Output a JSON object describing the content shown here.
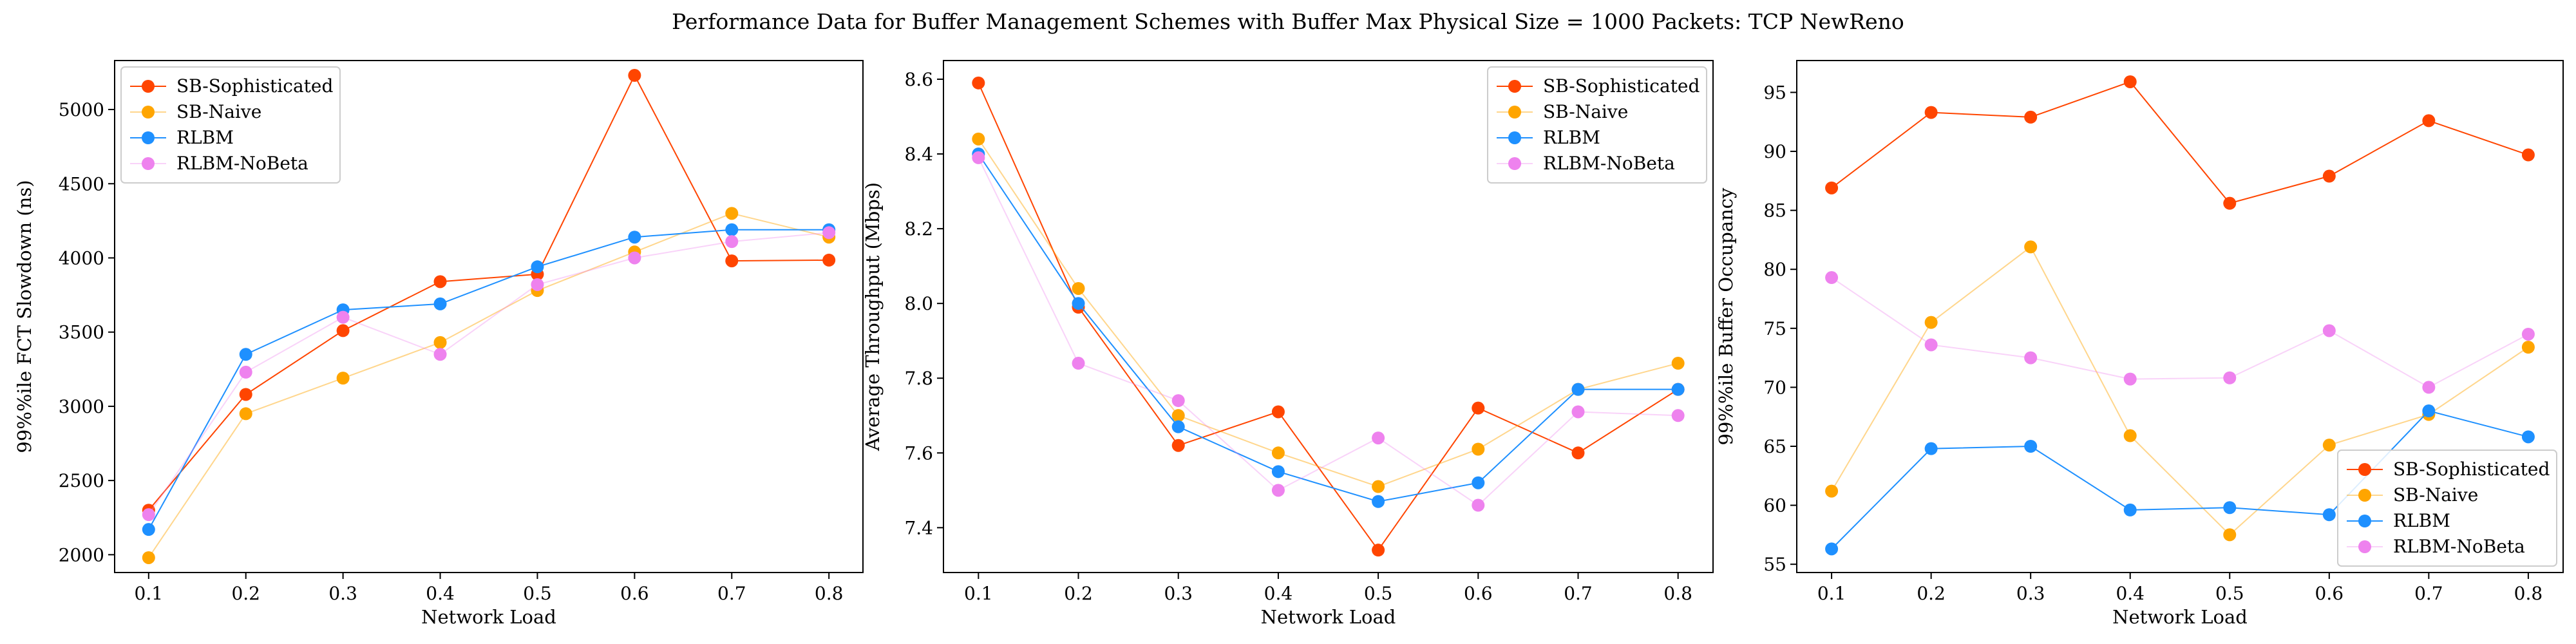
{
  "title": "Performance Data for Buffer Management Schemes with Buffer Max Physical Size = 1000 Packets: TCP NewReno",
  "colors": {
    "SB-Sophisticated": "#ff4500",
    "SB-Naive": "#ffa500",
    "RLBM": "#1e90ff",
    "RLBM-NoBeta": "#ee82ee"
  },
  "chart_data": [
    {
      "type": "line",
      "xlabel": "Network Load",
      "ylabel": "99%%ile FCT Slowdown (ns)",
      "x": [
        0.1,
        0.2,
        0.3,
        0.4,
        0.5,
        0.6,
        0.7,
        0.8
      ],
      "xticks": [
        "0.1",
        "0.2",
        "0.3",
        "0.4",
        "0.5",
        "0.6",
        "0.7",
        "0.8"
      ],
      "xlim": [
        0.065,
        0.835
      ],
      "ylim": [
        1880,
        5330
      ],
      "yticks": [
        2000,
        2500,
        3000,
        3500,
        4000,
        4500,
        5000
      ],
      "legend": "upper left",
      "series": [
        {
          "name": "SB-Sophisticated",
          "values": [
            2300,
            3080,
            3510,
            3840,
            3890,
            5230,
            3980,
            3985
          ]
        },
        {
          "name": "SB-Naive",
          "values": [
            1980,
            2950,
            3190,
            3430,
            3780,
            4040,
            4300,
            4140
          ]
        },
        {
          "name": "RLBM",
          "values": [
            2170,
            3350,
            3650,
            3690,
            3940,
            4140,
            4190,
            4190
          ]
        },
        {
          "name": "RLBM-NoBeta",
          "values": [
            2270,
            3230,
            3600,
            3350,
            3820,
            4000,
            4110,
            4170
          ]
        }
      ]
    },
    {
      "type": "line",
      "xlabel": "Network Load",
      "ylabel": "Average Throughput (Mbps)",
      "x": [
        0.1,
        0.2,
        0.3,
        0.4,
        0.5,
        0.6,
        0.7,
        0.8
      ],
      "xticks": [
        "0.1",
        "0.2",
        "0.3",
        "0.4",
        "0.5",
        "0.6",
        "0.7",
        "0.8"
      ],
      "xlim": [
        0.065,
        0.835
      ],
      "ylim": [
        7.28,
        8.65
      ],
      "yticks": [
        "7.4",
        "7.6",
        "7.8",
        "8.0",
        "8.2",
        "8.4",
        "8.6"
      ],
      "legend": "upper right",
      "series": [
        {
          "name": "SB-Sophisticated",
          "values": [
            8.59,
            7.99,
            7.62,
            7.71,
            7.34,
            7.72,
            7.6,
            7.77
          ]
        },
        {
          "name": "SB-Naive",
          "values": [
            8.44,
            8.04,
            7.7,
            7.6,
            7.51,
            7.61,
            7.77,
            7.84
          ]
        },
        {
          "name": "RLBM",
          "values": [
            8.4,
            8.0,
            7.67,
            7.55,
            7.47,
            7.52,
            7.77,
            7.77
          ]
        },
        {
          "name": "RLBM-NoBeta",
          "values": [
            8.39,
            7.84,
            7.74,
            7.5,
            7.64,
            7.46,
            7.71,
            7.7
          ]
        }
      ]
    },
    {
      "type": "line",
      "xlabel": "Network Load",
      "ylabel": "99%%ile Buffer Occupancy",
      "x": [
        0.1,
        0.2,
        0.3,
        0.4,
        0.5,
        0.6,
        0.7,
        0.8
      ],
      "xticks": [
        "0.1",
        "0.2",
        "0.3",
        "0.4",
        "0.5",
        "0.6",
        "0.7",
        "0.8"
      ],
      "xlim": [
        0.065,
        0.835
      ],
      "ylim": [
        54.3,
        97.7
      ],
      "yticks": [
        55,
        60,
        65,
        70,
        75,
        80,
        85,
        90,
        95
      ],
      "legend": "lower right",
      "series": [
        {
          "name": "SB-Sophisticated",
          "values": [
            86.9,
            93.3,
            92.9,
            95.9,
            85.6,
            87.9,
            92.6,
            89.7
          ]
        },
        {
          "name": "SB-Naive",
          "values": [
            61.2,
            75.5,
            81.9,
            65.9,
            57.5,
            65.1,
            67.7,
            73.4
          ]
        },
        {
          "name": "RLBM",
          "values": [
            56.3,
            64.8,
            65.0,
            59.6,
            59.8,
            59.2,
            68.0,
            65.8
          ]
        },
        {
          "name": "RLBM-NoBeta",
          "values": [
            79.3,
            73.6,
            72.5,
            70.7,
            70.8,
            74.8,
            70.0,
            74.5
          ]
        }
      ]
    }
  ]
}
